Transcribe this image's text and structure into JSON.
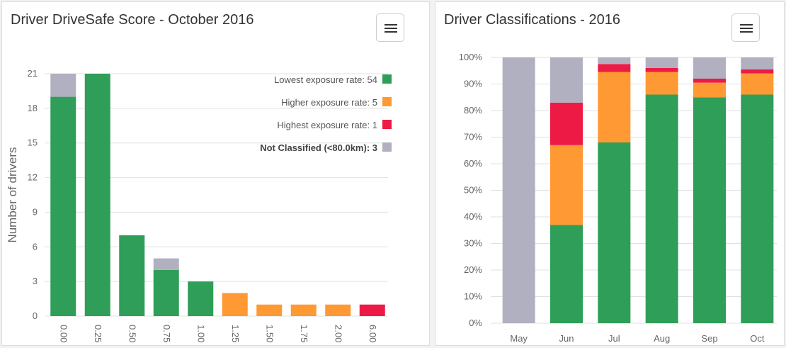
{
  "colors": {
    "green": "#2e9e58",
    "orange": "#ff9933",
    "red": "#ee1a46",
    "gray": "#b1b0c0",
    "grid": "#e0e0e0",
    "text": "#666666"
  },
  "menu_icon": "hamburger-menu-icon",
  "chart_data": [
    {
      "type": "bar",
      "stacked": true,
      "title": "Driver DriveSafe Score - October 2016",
      "ylabel": "Number of drivers",
      "xlabel": "",
      "ylim": [
        0,
        21
      ],
      "yticks": [
        "0",
        "3",
        "6",
        "9",
        "12",
        "15",
        "18",
        "21"
      ],
      "categories": [
        "0.00",
        "0.25",
        "0.50",
        "0.75",
        "1.00",
        "1.25",
        "1.50",
        "1.75",
        "2.00",
        "6.00"
      ],
      "series": [
        {
          "key": "green",
          "name": "Lowest exposure rate: 54",
          "values": [
            19,
            21,
            7,
            4,
            3,
            0,
            0,
            0,
            0,
            0
          ]
        },
        {
          "key": "orange",
          "name": "Higher exposure rate: 5",
          "values": [
            0,
            0,
            0,
            0,
            0,
            2,
            1,
            1,
            1,
            0
          ]
        },
        {
          "key": "red",
          "name": "Highest exposure rate: 1",
          "values": [
            0,
            0,
            0,
            0,
            0,
            0,
            0,
            0,
            0,
            1
          ]
        },
        {
          "key": "gray",
          "name": "Not Classified (<80.0km): 3",
          "values": [
            2,
            0,
            0,
            1,
            0,
            0,
            0,
            0,
            0,
            0
          ]
        }
      ],
      "legend_position": "top-right",
      "grid": true
    },
    {
      "type": "bar",
      "stacked": true,
      "percent": true,
      "title": "Driver Classifications - 2016",
      "ylim": [
        0,
        100
      ],
      "yticks": [
        "0%",
        "10%",
        "20%",
        "30%",
        "40%",
        "50%",
        "60%",
        "70%",
        "80%",
        "90%",
        "100%"
      ],
      "categories": [
        "May",
        "Jun",
        "Jul",
        "Aug",
        "Sep",
        "Oct"
      ],
      "series": [
        {
          "key": "green",
          "values": [
            0,
            37,
            68,
            86,
            85,
            86
          ]
        },
        {
          "key": "orange",
          "values": [
            0,
            30,
            26.5,
            8.5,
            5.5,
            8
          ]
        },
        {
          "key": "red",
          "values": [
            0,
            16,
            3,
            1.5,
            1.5,
            1.5
          ]
        },
        {
          "key": "gray",
          "values": [
            100,
            17,
            2.5,
            4,
            8,
            4.5
          ]
        }
      ],
      "grid": true
    }
  ]
}
